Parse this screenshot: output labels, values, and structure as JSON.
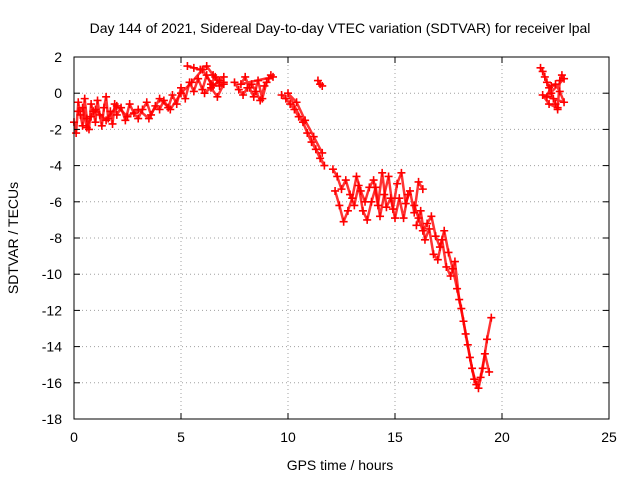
{
  "chart_data": {
    "type": "scatter",
    "title": "Day 144 of 2021, Sidereal Day-to-day VTEC variation (SDTVAR) for receiver lpal",
    "xlabel": "GPS time / hours",
    "ylabel": "SDTVAR / TECUs",
    "xlim": [
      0,
      25
    ],
    "ylim": [
      -18,
      2
    ],
    "xticks": [
      0,
      5,
      10,
      15,
      20,
      25
    ],
    "yticks": [
      -18,
      -16,
      -14,
      -12,
      -10,
      -8,
      -6,
      -4,
      -2,
      0,
      2
    ],
    "xtick_labels": [
      "0",
      "5",
      "10",
      "15",
      "20",
      "25"
    ],
    "ytick_labels": [
      "-18",
      "-16",
      "-14",
      "-12",
      "-10",
      "-8",
      "-6",
      "-4",
      "-2",
      "0",
      "2"
    ],
    "grid": true,
    "marker": "+",
    "color": "#ff0000",
    "series": [
      {
        "name": "seg1",
        "x": [
          0.0,
          0.1,
          0.2,
          0.3,
          0.4,
          0.5,
          0.6,
          0.7,
          0.8,
          0.9,
          1.0,
          1.1,
          1.2,
          1.3,
          1.4,
          1.5,
          1.6,
          1.7,
          1.8,
          1.9,
          2.0,
          2.2,
          2.4,
          2.6,
          2.8,
          3.0,
          3.2,
          3.4,
          3.6,
          3.8,
          4.0,
          4.2,
          4.4,
          4.6,
          4.8,
          5.0,
          5.2,
          5.4,
          5.6,
          5.8,
          6.0,
          6.2,
          6.4,
          6.6,
          6.8,
          7.0
        ],
        "y": [
          -1.6,
          -2.2,
          -0.5,
          -1.2,
          -1.8,
          -0.3,
          -1.4,
          -2.0,
          -0.6,
          -1.0,
          -1.6,
          -0.4,
          -1.2,
          -1.8,
          -0.8,
          -0.2,
          -1.4,
          -1.0,
          -1.7,
          -0.6,
          -1.2,
          -0.8,
          -1.5,
          -0.6,
          -1.1,
          -1.4,
          -0.9,
          -0.5,
          -1.2,
          -0.7,
          -0.9,
          -0.4,
          -0.8,
          -0.1,
          -0.6,
          0.3,
          -0.3,
          0.6,
          0.1,
          0.8,
          0.2,
          1.0,
          0.5,
          0.9,
          0.4,
          0.6
        ]
      },
      {
        "name": "seg1b",
        "x": [
          0.2,
          0.4,
          0.6,
          0.8,
          1.0,
          1.5,
          2.0,
          2.5,
          3.0,
          3.5,
          4.0,
          4.5,
          5.0,
          5.5,
          6.0,
          6.5,
          7.0
        ],
        "y": [
          -1.0,
          -0.8,
          -1.9,
          -1.3,
          -0.9,
          -1.5,
          -0.7,
          -1.3,
          -0.9,
          -1.4,
          -0.3,
          -0.9,
          0.0,
          0.6,
          1.3,
          0.4,
          0.9
        ]
      },
      {
        "name": "seg1c",
        "x": [
          5.3,
          5.6,
          5.9,
          6.2,
          6.5,
          6.8,
          6.1,
          6.4,
          6.7,
          7.0
        ],
        "y": [
          1.5,
          1.4,
          1.3,
          1.5,
          1.0,
          0.7,
          0.0,
          0.3,
          -0.2,
          0.5
        ]
      },
      {
        "name": "seg2",
        "x": [
          7.5,
          7.7,
          7.9,
          8.1,
          8.3,
          8.5,
          8.7,
          8.9,
          9.1,
          9.3,
          7.8,
          8.0,
          8.2,
          8.4,
          8.6,
          8.8,
          9.0,
          9.2
        ],
        "y": [
          0.6,
          0.2,
          -0.1,
          0.3,
          0.5,
          0.1,
          -0.4,
          0.4,
          0.8,
          0.9,
          0.5,
          0.9,
          0.3,
          -0.2,
          0.7,
          -0.3,
          0.6,
          1.0
        ]
      },
      {
        "name": "seg3",
        "x": [
          11.4,
          11.5,
          11.6
        ],
        "y": [
          0.7,
          0.5,
          0.4
        ]
      },
      {
        "name": "seg4",
        "x": [
          9.7,
          9.9,
          10.1,
          10.3,
          10.5,
          10.7,
          10.9,
          11.1,
          11.3,
          11.5,
          11.7,
          10.0,
          10.4,
          10.8,
          11.2,
          11.6
        ],
        "y": [
          -0.1,
          -0.3,
          -0.6,
          -0.9,
          -1.3,
          -1.6,
          -2.2,
          -2.7,
          -3.1,
          -3.6,
          -4.0,
          0.0,
          -0.5,
          -1.5,
          -2.4,
          -3.3
        ]
      },
      {
        "name": "seg5",
        "x": [
          12.1,
          12.3,
          12.5,
          12.7,
          12.9,
          13.1,
          13.3,
          13.5,
          13.7,
          13.9,
          14.1,
          14.3,
          14.5,
          14.7,
          14.9,
          15.1,
          15.3,
          15.5,
          15.7,
          15.9,
          16.1,
          16.3
        ],
        "y": [
          -4.2,
          -4.6,
          -5.3,
          -4.8,
          -5.6,
          -6.2,
          -5.1,
          -6.5,
          -7.0,
          -6.0,
          -5.2,
          -6.8,
          -5.6,
          -4.6,
          -6.4,
          -5.0,
          -4.4,
          -6.1,
          -5.4,
          -6.6,
          -4.9,
          -5.3
        ]
      },
      {
        "name": "seg5b",
        "x": [
          12.2,
          12.4,
          12.6,
          12.8,
          13.0,
          13.2,
          13.4,
          13.6,
          13.8,
          14.0,
          14.2,
          14.4,
          14.6,
          14.8,
          15.0,
          15.2,
          15.4,
          15.6
        ],
        "y": [
          -5.4,
          -6.2,
          -7.1,
          -6.5,
          -5.8,
          -4.6,
          -5.4,
          -6.0,
          -5.2,
          -4.8,
          -6.2,
          -4.4,
          -6.3,
          -5.8,
          -6.9,
          -5.8,
          -6.9,
          -5.6
        ]
      },
      {
        "name": "seg6",
        "x": [
          15.9,
          16.1,
          16.3,
          16.5,
          16.7,
          16.9,
          17.1,
          17.3,
          17.5,
          17.7,
          17.9,
          18.1,
          18.3,
          18.5,
          18.7,
          18.9,
          19.1,
          19.3,
          19.5
        ],
        "y": [
          -6.2,
          -6.9,
          -7.6,
          -7.2,
          -6.8,
          -7.9,
          -8.5,
          -7.6,
          -8.8,
          -9.7,
          -10.8,
          -11.9,
          -13.3,
          -14.6,
          -15.8,
          -16.3,
          -15.2,
          -13.6,
          -12.4
        ]
      },
      {
        "name": "seg6b",
        "x": [
          16.0,
          16.2,
          16.4,
          16.6,
          16.8,
          17.0,
          17.2,
          17.4,
          17.6,
          17.8,
          18.0,
          18.2,
          18.4,
          18.6,
          18.8,
          19.0,
          19.2,
          19.4
        ],
        "y": [
          -7.3,
          -6.5,
          -8.1,
          -7.5,
          -8.9,
          -9.2,
          -8.1,
          -9.6,
          -10.1,
          -9.3,
          -11.4,
          -12.6,
          -13.9,
          -15.2,
          -16.1,
          -15.7,
          -14.4,
          -15.4
        ]
      },
      {
        "name": "seg7",
        "x": [
          21.8,
          21.9,
          22.0,
          22.1,
          22.2,
          22.3,
          22.4,
          22.5,
          22.6,
          22.7,
          22.8,
          22.9,
          22.1,
          22.3,
          22.5,
          22.7,
          22.9,
          21.9,
          22.2,
          22.6
        ],
        "y": [
          1.4,
          1.2,
          0.9,
          0.6,
          0.3,
          0.0,
          -0.3,
          -0.6,
          -0.9,
          0.7,
          1.0,
          0.8,
          -0.2,
          0.4,
          0.5,
          0.1,
          -0.5,
          -0.1,
          -0.6,
          -0.8
        ]
      }
    ]
  }
}
